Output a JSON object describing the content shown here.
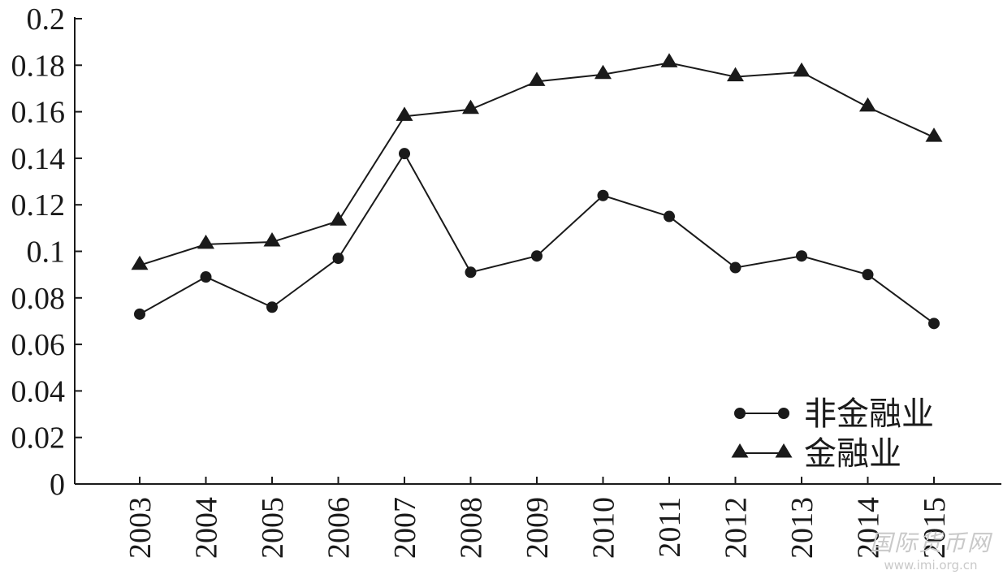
{
  "chart_data": {
    "type": "line",
    "title": "",
    "xlabel": "",
    "ylabel": "",
    "categories": [
      "2003",
      "2004",
      "2005",
      "2006",
      "2007",
      "2008",
      "2009",
      "2010",
      "2011",
      "2012",
      "2013",
      "2014",
      "2015"
    ],
    "ylim": [
      0,
      0.2
    ],
    "yticks": [
      "0",
      "0.02",
      "0.04",
      "0.06",
      "0.08",
      "0.1",
      "0.12",
      "0.14",
      "0.16",
      "0.18",
      "0.2"
    ],
    "grid": false,
    "legend_position": "bottom-right",
    "series": [
      {
        "name": "非金融业",
        "marker": "circle",
        "color": "#1a1a1a",
        "values": [
          0.073,
          0.089,
          0.076,
          0.097,
          0.142,
          0.091,
          0.098,
          0.124,
          0.115,
          0.093,
          0.098,
          0.09,
          0.069
        ]
      },
      {
        "name": "金融业",
        "marker": "triangle",
        "color": "#1a1a1a",
        "values": [
          0.094,
          0.103,
          0.104,
          0.113,
          0.158,
          0.161,
          0.173,
          0.176,
          0.181,
          0.175,
          0.177,
          0.162,
          0.149
        ]
      }
    ]
  },
  "watermark": {
    "main": "国际货币网",
    "url": "www.imi.org.cn"
  }
}
